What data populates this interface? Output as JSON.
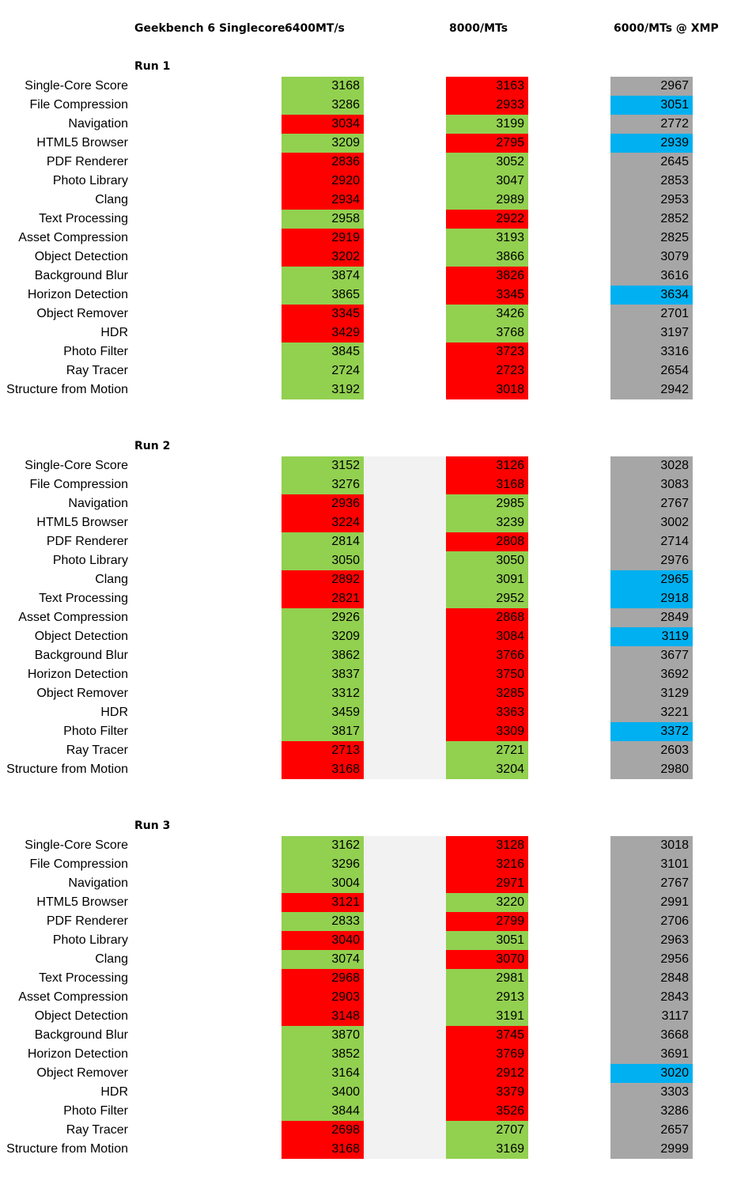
{
  "header": {
    "title": "Geekbench 6 Singlecore",
    "col1": "6400MT/s",
    "col2": "8000/MTs",
    "col3": "6000/MTs @ XMP"
  },
  "colors": {
    "green": "#92d050",
    "red": "#ff0000",
    "gray": "#a6a6a6",
    "blue": "#00b0f0"
  },
  "labels": [
    "Single-Core Score",
    "File Compression",
    "Navigation",
    "HTML5 Browser",
    "PDF Renderer",
    "Photo Library",
    "Clang",
    "Text Processing",
    "Asset Compression",
    "Object Detection",
    "Background Blur",
    "Horizon Detection",
    "Object Remover",
    "HDR",
    "Photo Filter",
    "Ray Tracer",
    "Structure from Motion"
  ],
  "runs": [
    {
      "title": "Run 1",
      "rows": [
        {
          "v1": "3168",
          "c1": "green",
          "v2": "3163",
          "c2": "red",
          "v3": "2967",
          "c3": "gray"
        },
        {
          "v1": "3286",
          "c1": "green",
          "v2": "2933",
          "c2": "red",
          "v3": "3051",
          "c3": "blue"
        },
        {
          "v1": "3034",
          "c1": "red",
          "v2": "3199",
          "c2": "green",
          "v3": "2772",
          "c3": "gray"
        },
        {
          "v1": "3209",
          "c1": "green",
          "v2": "2795",
          "c2": "red",
          "v3": "2939",
          "c3": "blue"
        },
        {
          "v1": "2836",
          "c1": "red",
          "v2": "3052",
          "c2": "green",
          "v3": "2645",
          "c3": "gray"
        },
        {
          "v1": "2920",
          "c1": "red",
          "v2": "3047",
          "c2": "green",
          "v3": "2853",
          "c3": "gray"
        },
        {
          "v1": "2934",
          "c1": "red",
          "v2": "2989",
          "c2": "green",
          "v3": "2953",
          "c3": "gray"
        },
        {
          "v1": "2958",
          "c1": "green",
          "v2": "2922",
          "c2": "red",
          "v3": "2852",
          "c3": "gray"
        },
        {
          "v1": "2919",
          "c1": "red",
          "v2": "3193",
          "c2": "green",
          "v3": "2825",
          "c3": "gray"
        },
        {
          "v1": "3202",
          "c1": "red",
          "v2": "3866",
          "c2": "green",
          "v3": "3079",
          "c3": "gray"
        },
        {
          "v1": "3874",
          "c1": "green",
          "v2": "3826",
          "c2": "red",
          "v3": "3616",
          "c3": "gray"
        },
        {
          "v1": "3865",
          "c1": "green",
          "v2": "3345",
          "c2": "red",
          "v3": "3634",
          "c3": "blue"
        },
        {
          "v1": "3345",
          "c1": "red",
          "v2": "3426",
          "c2": "green",
          "v3": "2701",
          "c3": "gray"
        },
        {
          "v1": "3429",
          "c1": "red",
          "v2": "3768",
          "c2": "green",
          "v3": "3197",
          "c3": "gray"
        },
        {
          "v1": "3845",
          "c1": "green",
          "v2": "3723",
          "c2": "red",
          "v3": "3316",
          "c3": "gray"
        },
        {
          "v1": "2724",
          "c1": "green",
          "v2": "2723",
          "c2": "red",
          "v3": "2654",
          "c3": "gray"
        },
        {
          "v1": "3192",
          "c1": "green",
          "v2": "3018",
          "c2": "red",
          "v3": "2942",
          "c3": "gray"
        }
      ]
    },
    {
      "title": "Run 2",
      "rows": [
        {
          "v1": "3152",
          "c1": "green",
          "v2": "3126",
          "c2": "red",
          "v3": "3028",
          "c3": "gray"
        },
        {
          "v1": "3276",
          "c1": "green",
          "v2": "3168",
          "c2": "red",
          "v3": "3083",
          "c3": "gray"
        },
        {
          "v1": "2936",
          "c1": "red",
          "v2": "2985",
          "c2": "green",
          "v3": "2767",
          "c3": "gray"
        },
        {
          "v1": "3224",
          "c1": "red",
          "v2": "3239",
          "c2": "green",
          "v3": "3002",
          "c3": "gray"
        },
        {
          "v1": "2814",
          "c1": "green",
          "v2": "2808",
          "c2": "red",
          "v3": "2714",
          "c3": "gray"
        },
        {
          "v1": "3050",
          "c1": "green",
          "v2": "3050",
          "c2": "green",
          "v3": "2976",
          "c3": "gray"
        },
        {
          "v1": "2892",
          "c1": "red",
          "v2": "3091",
          "c2": "green",
          "v3": "2965",
          "c3": "blue"
        },
        {
          "v1": "2821",
          "c1": "red",
          "v2": "2952",
          "c2": "green",
          "v3": "2918",
          "c3": "blue"
        },
        {
          "v1": "2926",
          "c1": "green",
          "v2": "2868",
          "c2": "red",
          "v3": "2849",
          "c3": "gray"
        },
        {
          "v1": "3209",
          "c1": "green",
          "v2": "3084",
          "c2": "red",
          "v3": "3119",
          "c3": "blue"
        },
        {
          "v1": "3862",
          "c1": "green",
          "v2": "3766",
          "c2": "red",
          "v3": "3677",
          "c3": "gray"
        },
        {
          "v1": "3837",
          "c1": "green",
          "v2": "3750",
          "c2": "red",
          "v3": "3692",
          "c3": "gray"
        },
        {
          "v1": "3312",
          "c1": "green",
          "v2": "3285",
          "c2": "red",
          "v3": "3129",
          "c3": "gray"
        },
        {
          "v1": "3459",
          "c1": "green",
          "v2": "3363",
          "c2": "red",
          "v3": "3221",
          "c3": "gray"
        },
        {
          "v1": "3817",
          "c1": "green",
          "v2": "3309",
          "c2": "red",
          "v3": "3372",
          "c3": "blue"
        },
        {
          "v1": "2713",
          "c1": "red",
          "v2": "2721",
          "c2": "green",
          "v3": "2603",
          "c3": "gray"
        },
        {
          "v1": "3168",
          "c1": "red",
          "v2": "3204",
          "c2": "green",
          "v3": "2980",
          "c3": "gray"
        }
      ]
    },
    {
      "title": "Run 3",
      "rows": [
        {
          "v1": "3162",
          "c1": "green",
          "v2": "3128",
          "c2": "red",
          "v3": "3018",
          "c3": "gray"
        },
        {
          "v1": "3296",
          "c1": "green",
          "v2": "3216",
          "c2": "red",
          "v3": "3101",
          "c3": "gray"
        },
        {
          "v1": "3004",
          "c1": "green",
          "v2": "2971",
          "c2": "red",
          "v3": "2767",
          "c3": "gray"
        },
        {
          "v1": "3121",
          "c1": "red",
          "v2": "3220",
          "c2": "green",
          "v3": "2991",
          "c3": "gray"
        },
        {
          "v1": "2833",
          "c1": "green",
          "v2": "2799",
          "c2": "red",
          "v3": "2706",
          "c3": "gray"
        },
        {
          "v1": "3040",
          "c1": "red",
          "v2": "3051",
          "c2": "green",
          "v3": "2963",
          "c3": "gray"
        },
        {
          "v1": "3074",
          "c1": "green",
          "v2": "3070",
          "c2": "red",
          "v3": "2956",
          "c3": "gray"
        },
        {
          "v1": "2968",
          "c1": "red",
          "v2": "2981",
          "c2": "green",
          "v3": "2848",
          "c3": "gray"
        },
        {
          "v1": "2903",
          "c1": "red",
          "v2": "2913",
          "c2": "green",
          "v3": "2843",
          "c3": "gray"
        },
        {
          "v1": "3148",
          "c1": "red",
          "v2": "3191",
          "c2": "green",
          "v3": "3117",
          "c3": "gray"
        },
        {
          "v1": "3870",
          "c1": "green",
          "v2": "3745",
          "c2": "red",
          "v3": "3668",
          "c3": "gray"
        },
        {
          "v1": "3852",
          "c1": "green",
          "v2": "3769",
          "c2": "red",
          "v3": "3691",
          "c3": "gray"
        },
        {
          "v1": "3164",
          "c1": "green",
          "v2": "2912",
          "c2": "red",
          "v3": "3020",
          "c3": "blue"
        },
        {
          "v1": "3400",
          "c1": "green",
          "v2": "3379",
          "c2": "red",
          "v3": "3303",
          "c3": "gray"
        },
        {
          "v1": "3844",
          "c1": "green",
          "v2": "3526",
          "c2": "red",
          "v3": "3286",
          "c3": "gray"
        },
        {
          "v1": "2698",
          "c1": "red",
          "v2": "2707",
          "c2": "green",
          "v3": "2657",
          "c3": "gray"
        },
        {
          "v1": "3168",
          "c1": "red",
          "v2": "3169",
          "c2": "green",
          "v3": "2999",
          "c3": "gray"
        }
      ]
    }
  ]
}
